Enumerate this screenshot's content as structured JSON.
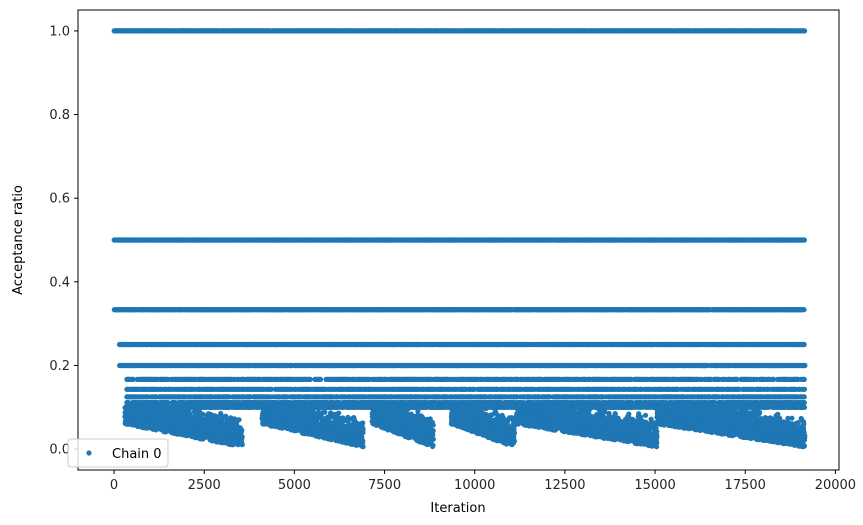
{
  "chart_data": {
    "type": "scatter",
    "title": "",
    "xlabel": "Iteration",
    "ylabel": "Acceptance ratio",
    "xlim": [
      -1000,
      20100
    ],
    "ylim": [
      -0.05,
      1.05
    ],
    "x_ticks": [
      0,
      2500,
      5000,
      7500,
      10000,
      12500,
      15000,
      17500,
      20000
    ],
    "x_tick_labels": [
      "0",
      "2500",
      "5000",
      "7500",
      "10000",
      "12500",
      "15000",
      "17500",
      "20000"
    ],
    "y_ticks": [
      0.0,
      0.2,
      0.4,
      0.6,
      0.8,
      1.0
    ],
    "y_tick_labels": [
      "0.0",
      "0.2",
      "0.4",
      "0.6",
      "0.8",
      "1.0"
    ],
    "legend": {
      "position": "lower-left",
      "entries": [
        "Chain 0"
      ]
    },
    "grid": false,
    "color": "#1f77b4",
    "series": [
      {
        "name": "Chain 0",
        "iteration_range": [
          0,
          19150
        ],
        "discrete_levels": [
          1.0,
          0.5,
          0.3333,
          0.25,
          0.2,
          0.1667,
          0.1429,
          0.125,
          0.1111,
          0.1
        ],
        "low_ratio_bursts": [
          {
            "iteration_range": [
              300,
              3550
            ],
            "min_ratio": 0.01
          },
          {
            "iteration_range": [
              4100,
              6900
            ],
            "min_ratio": 0.005
          },
          {
            "iteration_range": [
              7150,
              8850
            ],
            "min_ratio": 0.005
          },
          {
            "iteration_range": [
              9350,
              11100
            ],
            "min_ratio": 0.005
          },
          {
            "iteration_range": [
              11150,
              15050
            ],
            "min_ratio": 0.0
          },
          {
            "iteration_range": [
              15050,
              19150
            ],
            "min_ratio": 0.0
          }
        ]
      }
    ]
  }
}
